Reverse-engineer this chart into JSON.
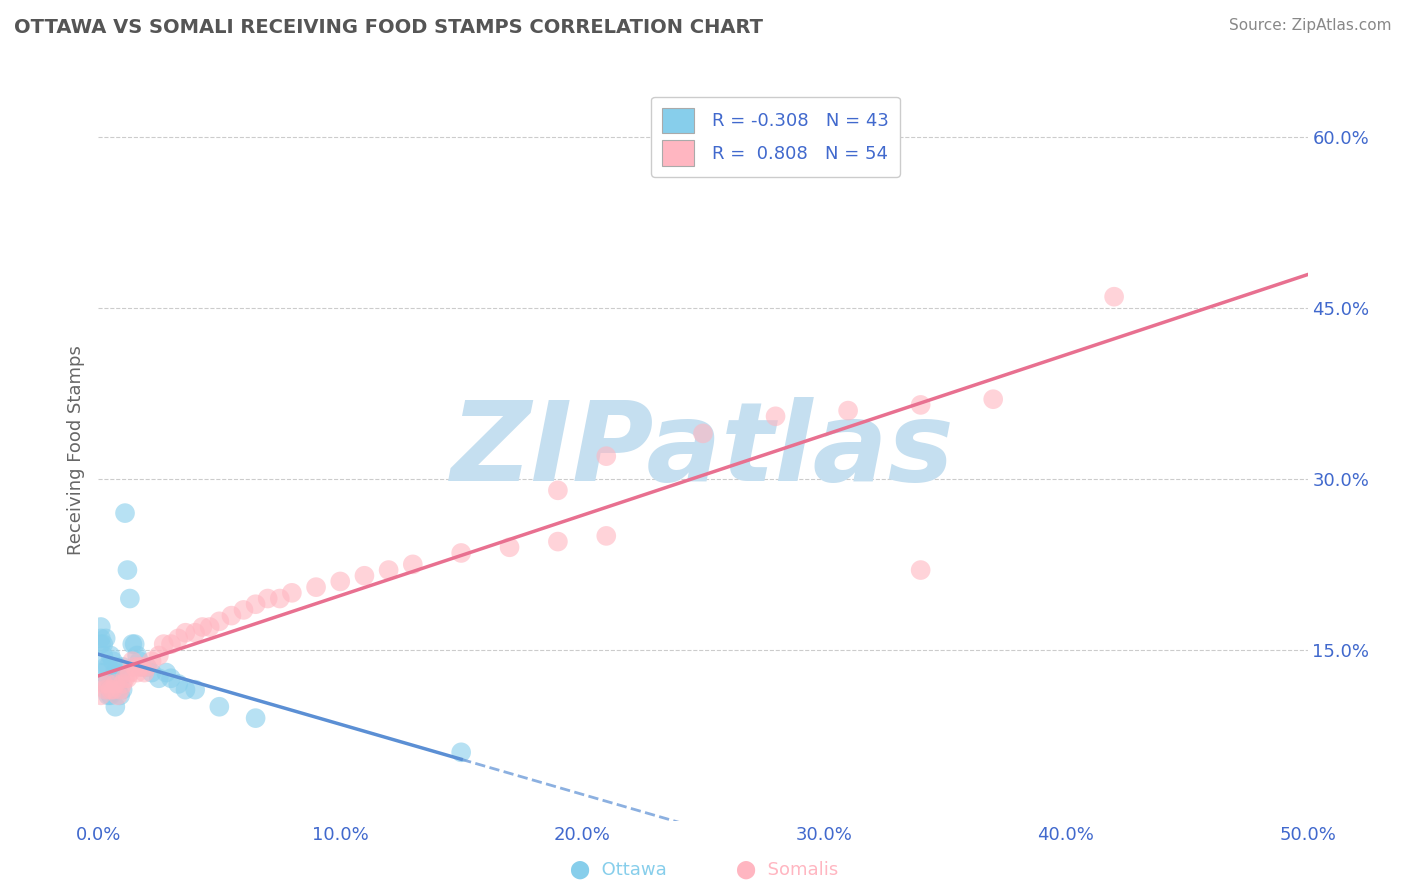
{
  "title": "OTTAWA VS SOMALI RECEIVING FOOD STAMPS CORRELATION CHART",
  "source_text": "Source: ZipAtlas.com",
  "ylabel": "Receiving Food Stamps",
  "xlim": [
    0.0,
    0.5
  ],
  "ylim": [
    0.0,
    0.65
  ],
  "xtick_labels": [
    "0.0%",
    "10.0%",
    "20.0%",
    "30.0%",
    "40.0%",
    "50.0%"
  ],
  "xtick_vals": [
    0.0,
    0.1,
    0.2,
    0.3,
    0.4,
    0.5
  ],
  "ytick_labels": [
    "15.0%",
    "30.0%",
    "45.0%",
    "60.0%"
  ],
  "ytick_vals": [
    0.15,
    0.3,
    0.45,
    0.6
  ],
  "color_ottawa": "#87CEEB",
  "color_somali": "#FFB6C1",
  "color_line_ottawa": "#5B8FD4",
  "color_line_somali": "#E87090",
  "color_blue_text": "#4169CD",
  "watermark_color": "#C5DFF0",
  "bg_color": "#FFFFFF",
  "ottawa_x": [
    0.001,
    0.001,
    0.001,
    0.002,
    0.002,
    0.002,
    0.003,
    0.003,
    0.003,
    0.004,
    0.004,
    0.005,
    0.005,
    0.005,
    0.006,
    0.006,
    0.007,
    0.007,
    0.008,
    0.008,
    0.009,
    0.009,
    0.01,
    0.01,
    0.011,
    0.012,
    0.013,
    0.014,
    0.015,
    0.016,
    0.017,
    0.018,
    0.02,
    0.022,
    0.025,
    0.028,
    0.03,
    0.033,
    0.036,
    0.04,
    0.05,
    0.065,
    0.15
  ],
  "ottawa_y": [
    0.155,
    0.16,
    0.17,
    0.13,
    0.145,
    0.155,
    0.12,
    0.135,
    0.16,
    0.11,
    0.135,
    0.11,
    0.12,
    0.145,
    0.115,
    0.14,
    0.1,
    0.13,
    0.115,
    0.135,
    0.11,
    0.125,
    0.115,
    0.135,
    0.27,
    0.22,
    0.195,
    0.155,
    0.155,
    0.145,
    0.14,
    0.135,
    0.135,
    0.13,
    0.125,
    0.13,
    0.125,
    0.12,
    0.115,
    0.115,
    0.1,
    0.09,
    0.06
  ],
  "somali_x": [
    0.001,
    0.002,
    0.003,
    0.004,
    0.005,
    0.006,
    0.007,
    0.008,
    0.009,
    0.01,
    0.011,
    0.012,
    0.013,
    0.014,
    0.015,
    0.016,
    0.017,
    0.018,
    0.019,
    0.02,
    0.022,
    0.025,
    0.027,
    0.03,
    0.033,
    0.036,
    0.04,
    0.043,
    0.046,
    0.05,
    0.055,
    0.06,
    0.065,
    0.07,
    0.075,
    0.08,
    0.09,
    0.1,
    0.11,
    0.12,
    0.13,
    0.15,
    0.17,
    0.19,
    0.21,
    0.25,
    0.28,
    0.31,
    0.34,
    0.37,
    0.34,
    0.42,
    0.21,
    0.19
  ],
  "somali_y": [
    0.11,
    0.12,
    0.115,
    0.12,
    0.115,
    0.115,
    0.12,
    0.11,
    0.115,
    0.12,
    0.125,
    0.125,
    0.13,
    0.14,
    0.135,
    0.13,
    0.135,
    0.135,
    0.13,
    0.135,
    0.14,
    0.145,
    0.155,
    0.155,
    0.16,
    0.165,
    0.165,
    0.17,
    0.17,
    0.175,
    0.18,
    0.185,
    0.19,
    0.195,
    0.195,
    0.2,
    0.205,
    0.21,
    0.215,
    0.22,
    0.225,
    0.235,
    0.24,
    0.245,
    0.25,
    0.34,
    0.355,
    0.36,
    0.365,
    0.37,
    0.22,
    0.46,
    0.32,
    0.29
  ]
}
